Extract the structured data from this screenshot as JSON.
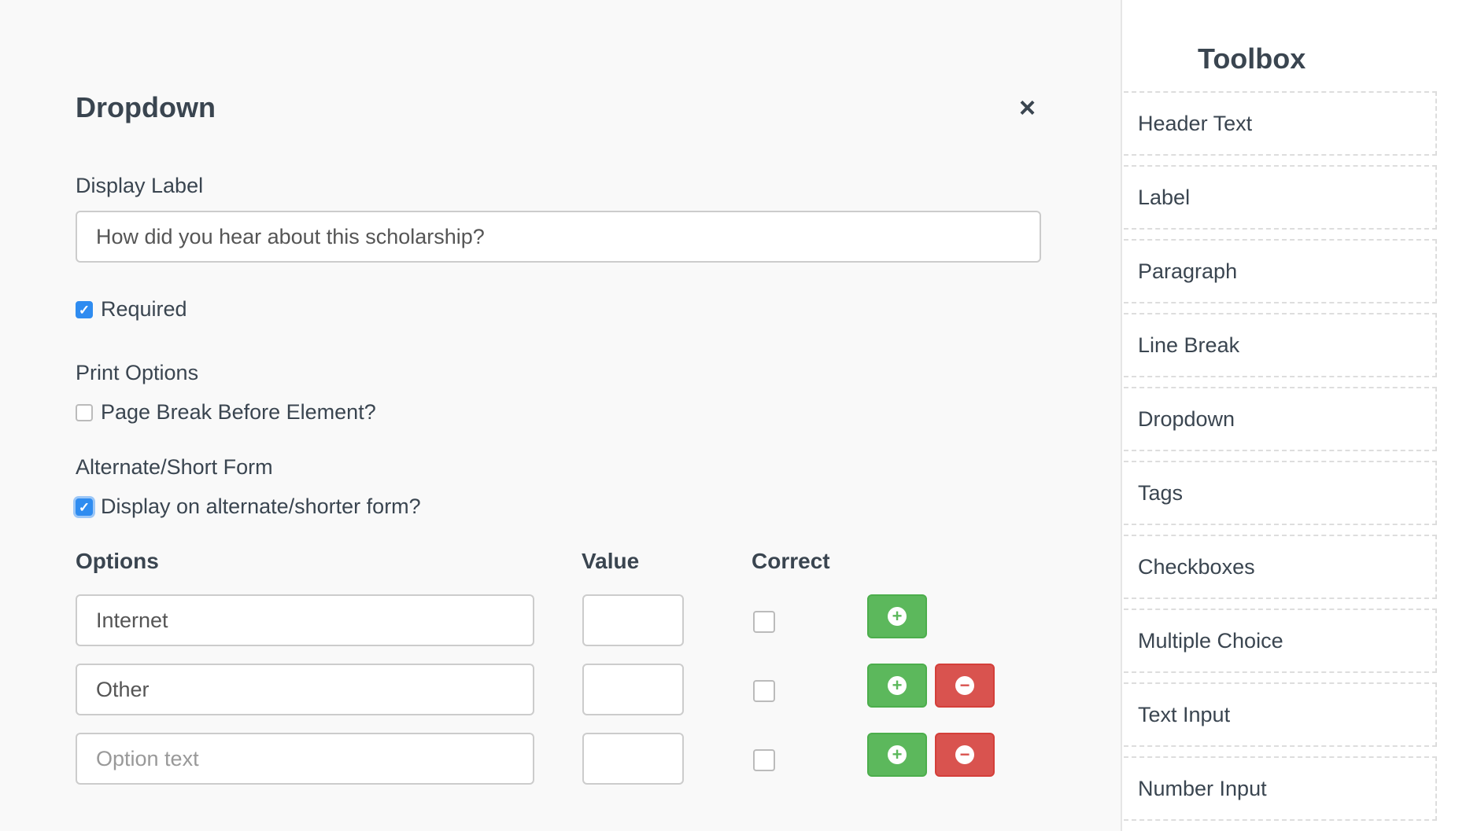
{
  "editor": {
    "title": "Dropdown",
    "close_icon": "×",
    "display_label": {
      "label": "Display Label",
      "value": "How did you hear about this scholarship?"
    },
    "required": {
      "label": "Required",
      "checked": true
    },
    "print_options": {
      "heading": "Print Options",
      "page_break": {
        "label": "Page Break Before Element?",
        "checked": false
      }
    },
    "alt_form": {
      "heading": "Alternate/Short Form",
      "display": {
        "label": "Display on alternate/shorter form?",
        "checked": true
      }
    },
    "options": {
      "headers": {
        "options": "Options",
        "value": "Value",
        "correct": "Correct"
      },
      "placeholder": "Option text",
      "rows": [
        {
          "text": "Internet",
          "value": "",
          "correct": false,
          "removable": false
        },
        {
          "text": "Other",
          "value": "",
          "correct": false,
          "removable": true
        },
        {
          "text": "",
          "value": "",
          "correct": false,
          "removable": true
        }
      ],
      "add_icon": "+",
      "remove_icon": "−"
    }
  },
  "colors": {
    "add": "#5cb85c",
    "remove": "#d9534f",
    "checkbox": "#2f8cf0"
  },
  "toolbox": {
    "title": "Toolbox",
    "items": [
      "Header Text",
      "Label",
      "Paragraph",
      "Line Break",
      "Dropdown",
      "Tags",
      "Checkboxes",
      "Multiple Choice",
      "Text Input",
      "Number Input"
    ]
  }
}
